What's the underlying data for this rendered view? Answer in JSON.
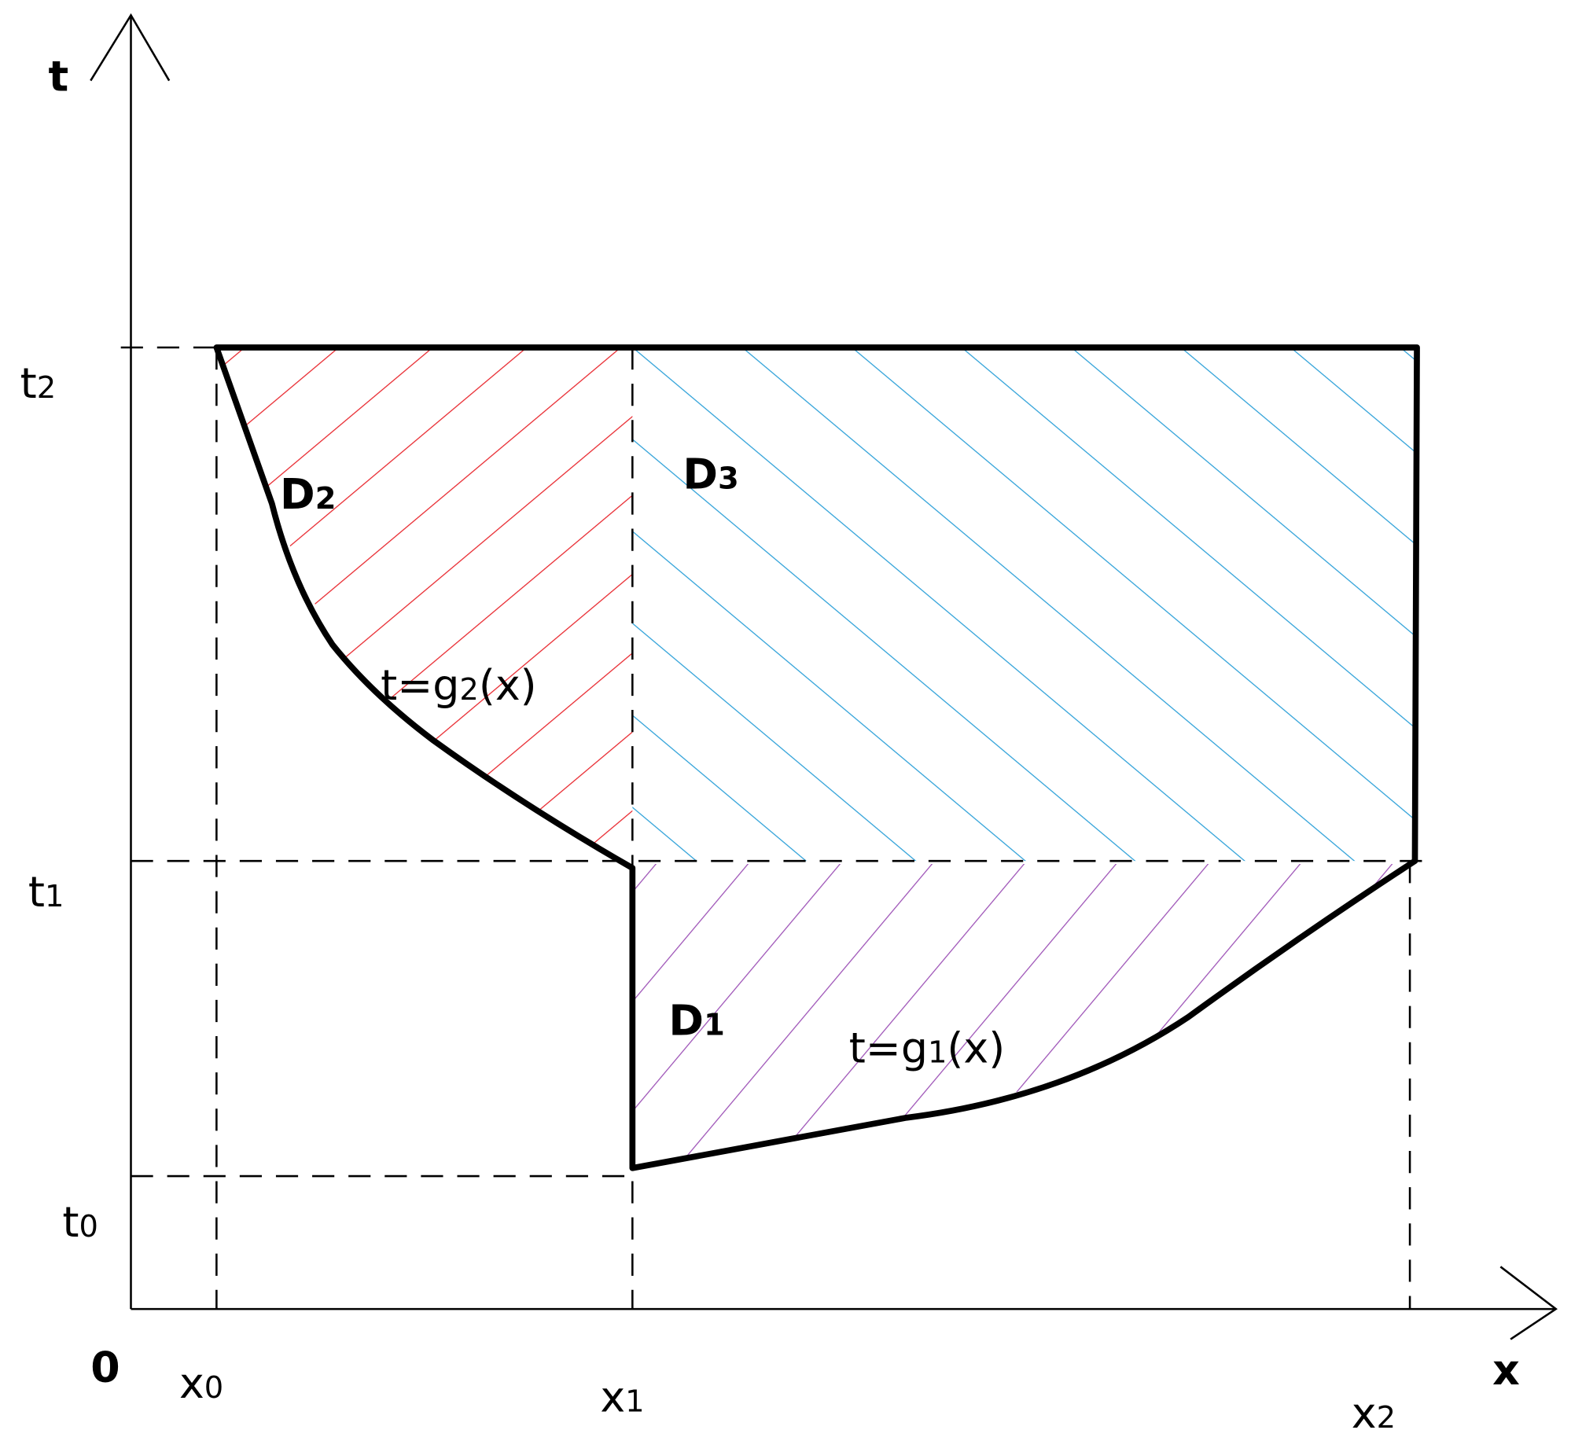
{
  "axes": {
    "t": "t",
    "x": "x",
    "origin": "0"
  },
  "t_marks": [
    {
      "main": "t",
      "sub": "2"
    },
    {
      "main": "t",
      "sub": "1"
    },
    {
      "main": "t",
      "sub": "0"
    }
  ],
  "x_marks": [
    {
      "main": "x",
      "sub": "0"
    },
    {
      "main": "x",
      "sub": "1"
    },
    {
      "main": "x",
      "sub": "2"
    }
  ],
  "regions": [
    {
      "main": "D",
      "sub": "2"
    },
    {
      "main": "D",
      "sub": "3"
    },
    {
      "main": "D",
      "sub": "1"
    }
  ],
  "curves": [
    {
      "main": "t=g",
      "sub": "2",
      "tail": "(x)"
    },
    {
      "main": "t=g",
      "sub": "1",
      "tail": "(x)"
    }
  ]
}
